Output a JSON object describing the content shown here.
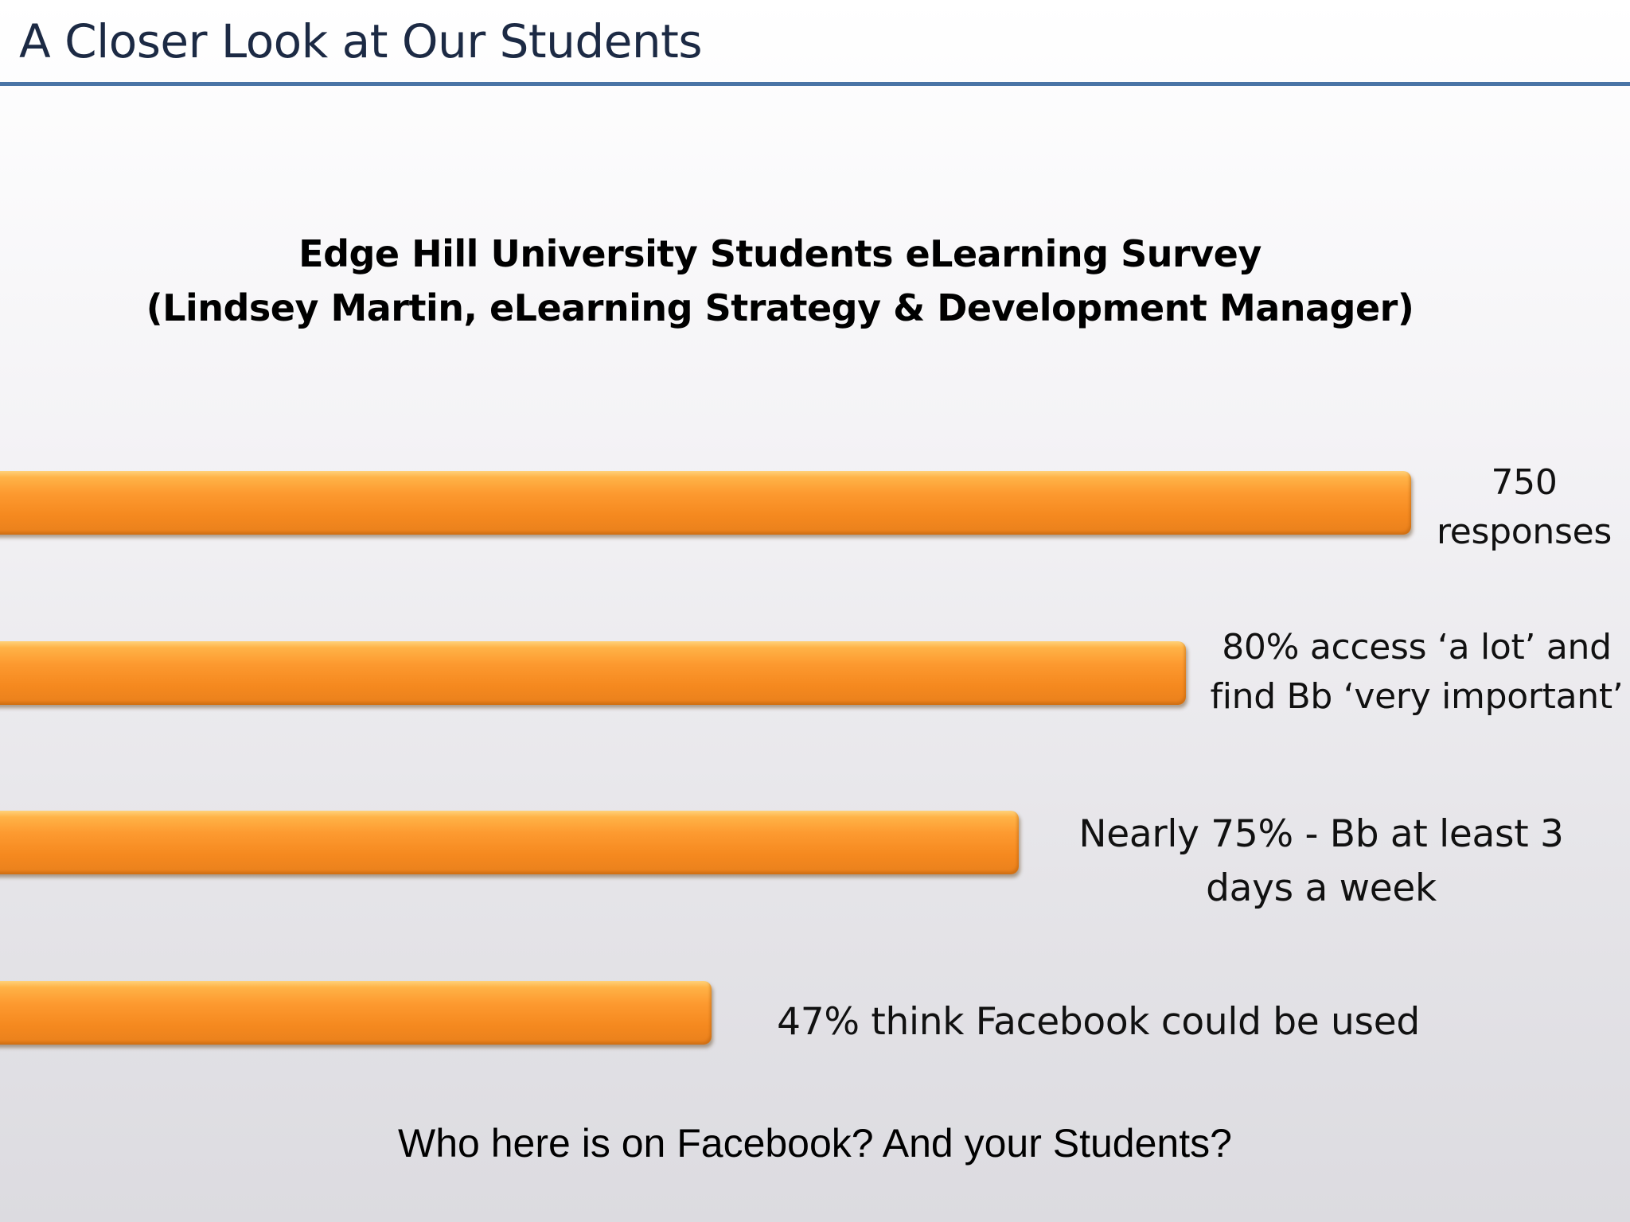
{
  "slide": {
    "title": "A Closer Look at Our Students",
    "heading_line1": "Edge Hill University Students eLearning Survey",
    "heading_line2": "(Lindsey Martin, eLearning Strategy & Development Manager)",
    "footer_question": "Who here is on Facebook? And your Students?"
  },
  "bars": [
    {
      "label_lines": [
        "750",
        "responses"
      ]
    },
    {
      "label_lines": [
        "80% access ‘a lot’ and",
        "find Bb ‘very important’"
      ]
    },
    {
      "label_lines": [
        "Nearly 75% - Bb at least 3",
        "days a week"
      ]
    },
    {
      "label_lines": [
        "47% think Facebook could be used"
      ]
    }
  ],
  "colors": {
    "bar": "#f5891f",
    "title_text": "#1c2a44",
    "title_rule": "#4a74a6"
  }
}
